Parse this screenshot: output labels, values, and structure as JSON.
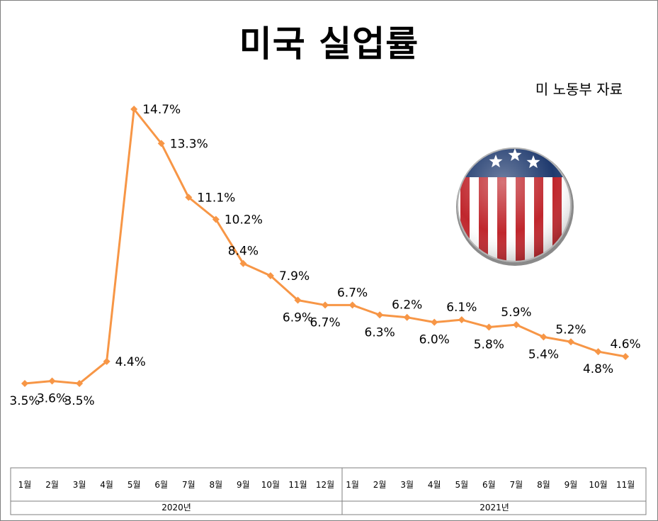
{
  "chart_data": {
    "type": "line",
    "title": "미국 실업률",
    "source": "미 노동부 자료",
    "categories": [
      "1월",
      "2월",
      "3월",
      "4월",
      "5월",
      "6월",
      "7월",
      "8월",
      "9월",
      "10월",
      "11월",
      "12월",
      "1월",
      "2월",
      "3월",
      "4월",
      "5월",
      "6월",
      "7월",
      "8월",
      "9월",
      "10월",
      "11월"
    ],
    "groups": [
      {
        "label": "2020년",
        "count": 12
      },
      {
        "label": "2021년",
        "count": 11
      }
    ],
    "series": [
      {
        "values": [
          3.5,
          3.6,
          3.5,
          4.4,
          14.7,
          13.3,
          11.1,
          10.2,
          8.4,
          7.9,
          6.9,
          6.7,
          6.7,
          6.3,
          6.2,
          6.0,
          6.1,
          5.8,
          5.9,
          5.4,
          5.2,
          4.8,
          4.6
        ],
        "labels": [
          "3.5%",
          "3.6%",
          "3.5%",
          "4.4%",
          "14.7%",
          "13.3%",
          "11.1%",
          "10.2%",
          "8.4%",
          "7.9%",
          "6.9%",
          "6.7%",
          "6.7%",
          "6.3%",
          "6.2%",
          "6.0%",
          "6.1%",
          "5.8%",
          "5.9%",
          "5.4%",
          "5.2%",
          "4.8%",
          "4.6%"
        ]
      }
    ],
    "line_color": "#f79646",
    "ylim": [
      0,
      18
    ],
    "grid": false,
    "legend": "none"
  },
  "badge": {
    "icon": "us-flag-badge-icon",
    "colors": {
      "navy": "#1f3a6e",
      "red": "#c0272d",
      "white": "#ffffff"
    }
  }
}
